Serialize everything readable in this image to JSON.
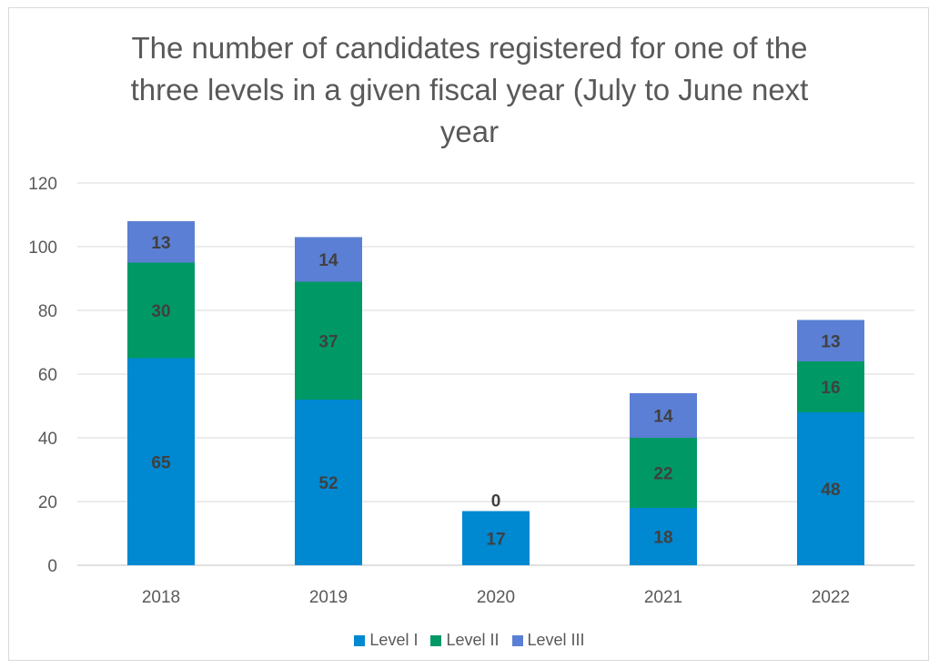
{
  "chart_data": {
    "type": "bar",
    "stacked": true,
    "title": "The number of candidates registered for one of the three levels in a given fiscal year (July to June next year",
    "title_lines": [
      "The number of candidates registered for one of the",
      "three levels in a given fiscal year (July to June next",
      "year"
    ],
    "categories": [
      "2018",
      "2019",
      "2020",
      "2021",
      "2022"
    ],
    "series": [
      {
        "name": "Level I",
        "color": "#0088d1",
        "values": [
          65,
          52,
          17,
          18,
          48
        ]
      },
      {
        "name": "Level II",
        "color": "#009966",
        "values": [
          30,
          37,
          0,
          22,
          16
        ]
      },
      {
        "name": "Level III",
        "color": "#5b7fd4",
        "values": [
          13,
          14,
          0,
          14,
          13
        ]
      }
    ],
    "ylim": [
      0,
      120
    ],
    "yticks": [
      0,
      20,
      40,
      60,
      80,
      100,
      120
    ],
    "grid": true,
    "legend": "bottom",
    "hidden_labels": [
      [],
      [],
      [
        2
      ],
      [],
      []
    ]
  }
}
